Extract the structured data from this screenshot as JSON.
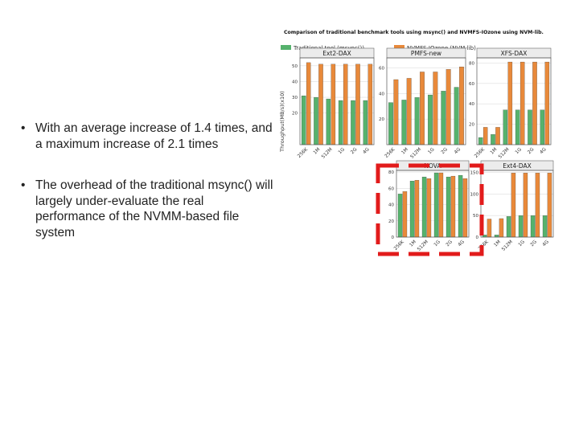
{
  "bullets": [
    "With an average increase of 1.4 times, and a maximum increase of 2.1 times",
    "The overhead of the traditional msync() will largely under-evaluate the real performance of the NVMM-based file system"
  ],
  "colors": {
    "traditional": "#56b26d",
    "nvmfs": "#e8893a",
    "highlight": "#e21b1b"
  },
  "chart_data": {
    "type": "bar",
    "title": "Comparison of traditional benchmark tools using msync() and NVMFS-IOzone using NVM-lib.",
    "ylabel": "Throughput(MB/s)(x10)",
    "legend": [
      "Traditional tool (msync())",
      "NVMFS-IOzone (NVM-lib)"
    ],
    "legend_position": "top",
    "categories": [
      "256K",
      "1M",
      "512M",
      "1G",
      "2G",
      "4G"
    ],
    "highlighted_panels": [
      "NOVA",
      "Ext4-DAX"
    ],
    "panels": [
      {
        "name": "Ext2-DAX",
        "ylim": [
          0,
          55
        ],
        "yticks": [
          20,
          30,
          40,
          50
        ],
        "series": [
          {
            "name": "Traditional tool (msync())",
            "values": [
              31,
              30,
              29,
              28,
              28,
              28
            ]
          },
          {
            "name": "NVMFS-IOzone (NVM-lib)",
            "values": [
              52,
              51,
              51,
              51,
              51,
              51
            ]
          }
        ]
      },
      {
        "name": "PMFS-new",
        "ylim": [
          0,
          68
        ],
        "yticks": [
          20,
          40,
          60
        ],
        "series": [
          {
            "name": "Traditional tool (msync())",
            "values": [
              33,
              35,
              37,
              39,
              42,
              45
            ]
          },
          {
            "name": "NVMFS-IOzone (NVM-lib)",
            "values": [
              51,
              52,
              57,
              57,
              59,
              61
            ]
          }
        ]
      },
      {
        "name": "XFS-DAX",
        "ylim": [
          0,
          85
        ],
        "yticks": [
          20,
          40,
          60,
          80
        ],
        "series": [
          {
            "name": "Traditional tool (msync())",
            "values": [
              7,
              10,
              34,
              34,
              34,
              34
            ]
          },
          {
            "name": "NVMFS-IOzone (NVM-lib)",
            "values": [
              17,
              17,
              81,
              81,
              81,
              81
            ]
          }
        ]
      },
      {
        "name": "NOVA",
        "ylim": [
          0,
          82
        ],
        "yticks": [
          0,
          20,
          40,
          60,
          80
        ],
        "series": [
          {
            "name": "Traditional tool (msync())",
            "values": [
              53,
              69,
              74,
              79,
              74,
              76
            ]
          },
          {
            "name": "NVMFS-IOzone (NVM-lib)",
            "values": [
              56,
              70,
              72,
              79,
              75,
              72
            ]
          }
        ]
      },
      {
        "name": "Ext4-DAX",
        "ylim": [
          0,
          155
        ],
        "yticks": [
          0,
          50,
          100,
          150
        ],
        "series": [
          {
            "name": "Traditional tool (msync())",
            "values": [
              5,
              5,
              48,
              50,
              50,
              50
            ]
          },
          {
            "name": "NVMFS-IOzone (NVM-lib)",
            "values": [
              42,
              43,
              149,
              149,
              149,
              149
            ]
          }
        ]
      }
    ]
  }
}
